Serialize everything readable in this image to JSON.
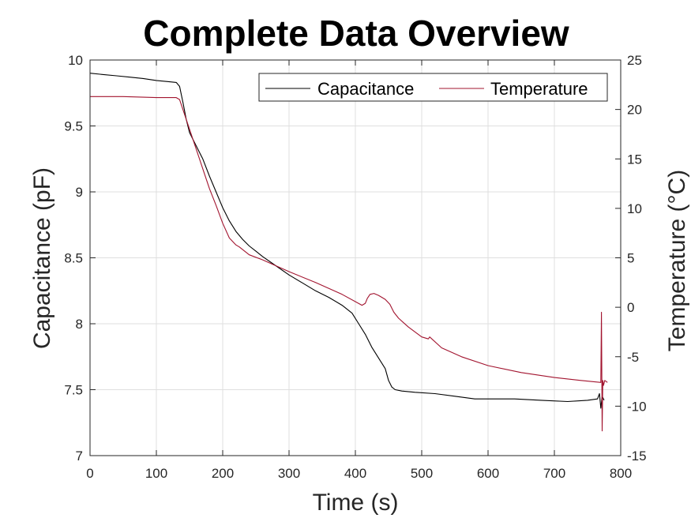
{
  "chart_data": {
    "type": "line",
    "title": "Complete Data Overview",
    "xlabel": "Time (s)",
    "ylabel_left": "Capacitance (pF)",
    "ylabel_right": "Temperature (°C)",
    "xlim": [
      0,
      800
    ],
    "ylim_left": [
      7,
      10
    ],
    "ylim_right": [
      -15,
      25
    ],
    "xticks": [
      0,
      100,
      200,
      300,
      400,
      500,
      600,
      700,
      800
    ],
    "yticks_left": [
      "7",
      "7.5",
      "8",
      "8.5",
      "9",
      "9.5",
      "10"
    ],
    "yticks_left_values": [
      7,
      7.5,
      8,
      8.5,
      9,
      9.5,
      10
    ],
    "yticks_right": [
      "-15",
      "-10",
      "-5",
      "0",
      "5",
      "10",
      "15",
      "20",
      "25"
    ],
    "yticks_right_values": [
      -15,
      -10,
      -5,
      0,
      5,
      10,
      15,
      20,
      25
    ],
    "grid": true,
    "legend_position": "top-right",
    "colors": {
      "capacitance": "#000000",
      "temperature": "#a2142f",
      "grid": "#dfdfdf",
      "axis": "#262626"
    },
    "series": [
      {
        "name": "Capacitance",
        "axis": "left",
        "x": [
          0,
          20,
          40,
          60,
          80,
          100,
          120,
          130,
          135,
          140,
          145,
          150,
          160,
          170,
          180,
          190,
          200,
          210,
          220,
          230,
          240,
          250,
          260,
          280,
          300,
          320,
          340,
          360,
          380,
          395,
          405,
          415,
          425,
          435,
          445,
          450,
          455,
          460,
          470,
          490,
          520,
          550,
          580,
          610,
          640,
          680,
          720,
          750,
          765,
          768,
          770,
          772,
          775
        ],
        "y": [
          9.9,
          9.89,
          9.88,
          9.87,
          9.86,
          9.845,
          9.835,
          9.83,
          9.8,
          9.68,
          9.55,
          9.45,
          9.35,
          9.25,
          9.12,
          9.0,
          8.88,
          8.78,
          8.7,
          8.64,
          8.59,
          8.55,
          8.51,
          8.44,
          8.37,
          8.31,
          8.25,
          8.2,
          8.14,
          8.08,
          8.0,
          7.92,
          7.82,
          7.74,
          7.66,
          7.57,
          7.52,
          7.5,
          7.49,
          7.48,
          7.47,
          7.45,
          7.43,
          7.43,
          7.43,
          7.42,
          7.41,
          7.42,
          7.43,
          7.47,
          7.36,
          7.45,
          7.42
        ]
      },
      {
        "name": "Temperature",
        "axis": "right",
        "x": [
          0,
          50,
          100,
          130,
          135,
          140,
          150,
          160,
          170,
          180,
          190,
          200,
          210,
          220,
          225,
          240,
          260,
          300,
          340,
          380,
          410,
          415,
          418,
          422,
          428,
          435,
          445,
          452,
          458,
          465,
          480,
          500,
          510,
          512,
          530,
          560,
          600,
          650,
          700,
          740,
          770,
          771,
          772,
          773,
          774,
          776,
          780
        ],
        "y": [
          21.3,
          21.3,
          21.2,
          21.2,
          21.0,
          20.0,
          18.0,
          16.0,
          14.0,
          12.0,
          10.3,
          8.5,
          7.0,
          6.3,
          6.1,
          5.3,
          4.8,
          3.6,
          2.5,
          1.3,
          0.2,
          0.4,
          0.9,
          1.3,
          1.4,
          1.2,
          0.8,
          0.3,
          -0.5,
          -1.1,
          -2.0,
          -3.0,
          -3.2,
          -3.0,
          -4.1,
          -5.0,
          -5.9,
          -6.6,
          -7.1,
          -7.4,
          -7.6,
          -0.5,
          -12.5,
          -7.4,
          -7.9,
          -7.4,
          -7.6
        ]
      }
    ]
  }
}
